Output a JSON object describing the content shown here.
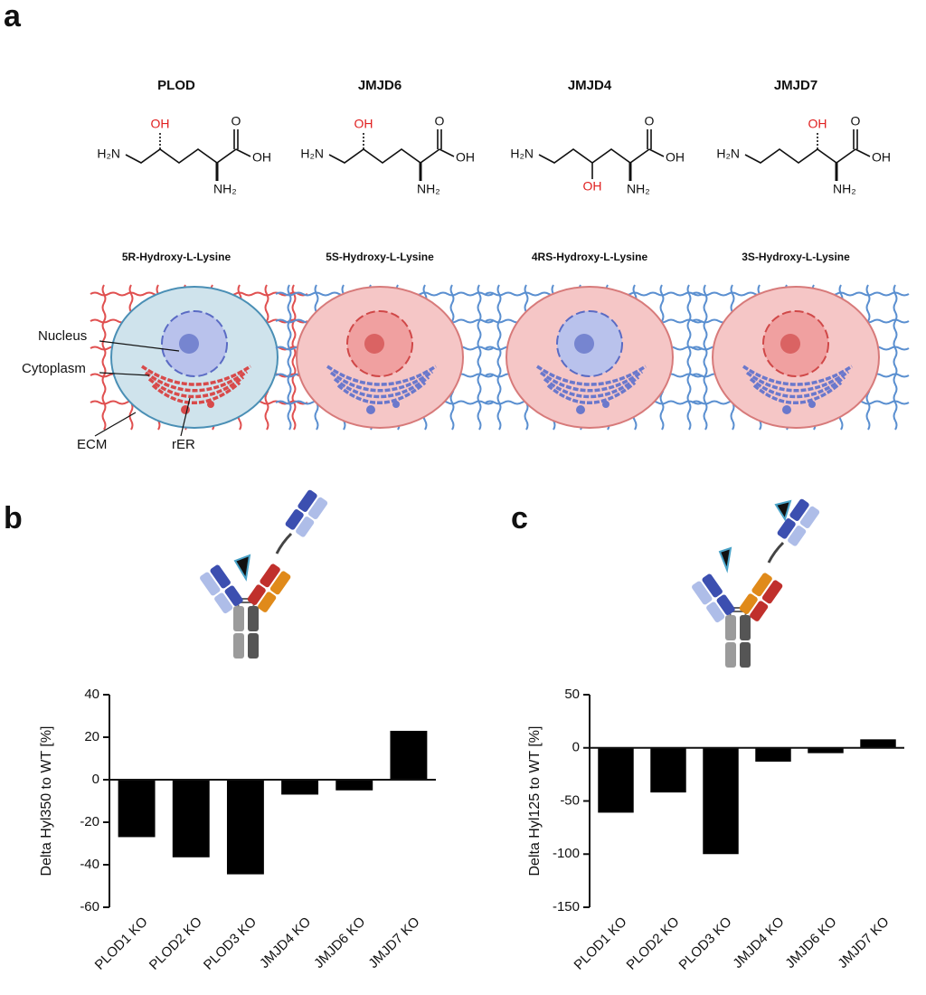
{
  "panels": [
    "a",
    "b",
    "c"
  ],
  "enzymes": [
    "PLOD",
    "JMJD6",
    "JMJD4",
    "JMJD7"
  ],
  "structures": [
    {
      "amine": "H₂N",
      "hydroxyl": "OH",
      "acid": "OH",
      "carbonyl": "O",
      "alpha_amine": "NH₂"
    },
    {
      "amine": "H₂N",
      "hydroxyl": "OH",
      "acid": "OH",
      "carbonyl": "O",
      "alpha_amine": "NH₂"
    },
    {
      "amine": "H₂N",
      "hydroxyl": "OH",
      "acid": "OH",
      "carbonyl": "O",
      "alpha_amine": "NH₂"
    },
    {
      "amine": "H₂N",
      "hydroxyl": "OH",
      "acid": "OH",
      "carbonyl": "O",
      "alpha_amine": "NH₂"
    }
  ],
  "compounds": [
    "5R-Hydroxy-L-Lysine",
    "5S-Hydroxy-L-Lysine",
    "4RS-Hydroxy-L-Lysine",
    "3S-Hydroxy-L-Lysine"
  ],
  "cell_labels": [
    "Nucleus",
    "Cytoplasm",
    "ECM",
    "rER"
  ],
  "chart_data": [
    {
      "type": "bar",
      "ylabel": "Delta Hyl350 to WT [%]",
      "categories": [
        "PLOD1 KO",
        "PLOD2 KO",
        "PLOD3 KO",
        "JMJD4 KO",
        "JMJD6 KO",
        "JMJD7 KO"
      ],
      "values": [
        -27,
        -36.5,
        -44.5,
        -7,
        -5,
        23
      ],
      "color": "#000000",
      "ylim": [
        -60,
        40
      ],
      "yticks": [
        -60,
        -40,
        -20,
        0,
        20,
        40
      ]
    },
    {
      "type": "bar",
      "ylabel": "Delta Hyl125 to WT [%]",
      "categories": [
        "PLOD1 KO",
        "PLOD2 KO",
        "PLOD3 KO",
        "JMJD4 KO",
        "JMJD6 KO",
        "JMJD7 KO"
      ],
      "values": [
        -61,
        -42,
        -100,
        -13,
        -5,
        8
      ],
      "color": "#000000",
      "ylim": [
        -150,
        50
      ],
      "yticks": [
        -150,
        -100,
        -50,
        0,
        50
      ]
    }
  ]
}
